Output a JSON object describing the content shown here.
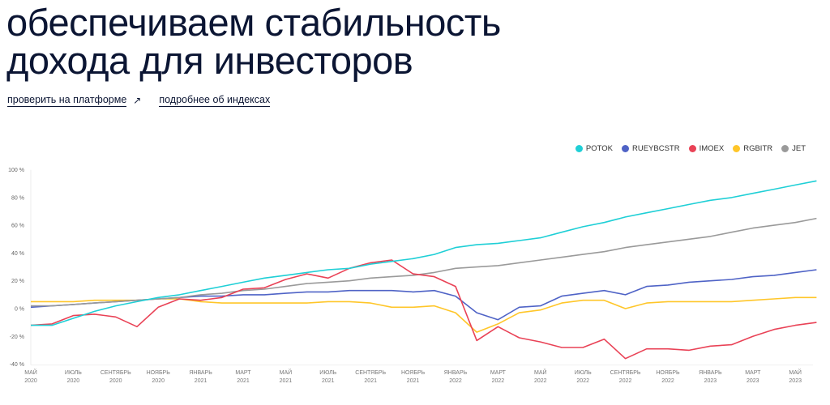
{
  "header": {
    "title_line1": "обеспечиваем стабильность",
    "title_line2": "дохода для инвесторов"
  },
  "links": {
    "platform_label": "проверить на платформе",
    "platform_icon": "arrow-up-right-icon",
    "platform_icon_glyph": "↗",
    "indexes_label": "подробнее об индексах"
  },
  "chart_data": {
    "type": "line",
    "title": "",
    "xlabel": "",
    "ylabel": "",
    "ylim": [
      -40,
      100
    ],
    "yticks": [
      "100 %",
      "80 %",
      "60 %",
      "40 %",
      "20 %",
      "0 %",
      "-20 %",
      "-40 %"
    ],
    "ytick_values": [
      100,
      80,
      60,
      40,
      20,
      0,
      -20,
      -40
    ],
    "grid": false,
    "legend_position": "top-right",
    "x": [
      "2020-05",
      "2020-06",
      "2020-07",
      "2020-08",
      "2020-09",
      "2020-10",
      "2020-11",
      "2020-12",
      "2021-01",
      "2021-02",
      "2021-03",
      "2021-04",
      "2021-05",
      "2021-06",
      "2021-07",
      "2021-08",
      "2021-09",
      "2021-10",
      "2021-11",
      "2021-12",
      "2022-01",
      "2022-02",
      "2022-03",
      "2022-04",
      "2022-05",
      "2022-06",
      "2022-07",
      "2022-08",
      "2022-09",
      "2022-10",
      "2022-11",
      "2022-12",
      "2023-01",
      "2023-02",
      "2023-03",
      "2023-04",
      "2023-05",
      "2023-06"
    ],
    "xtick_labels": [
      {
        "index": 0,
        "month": "МАЙ",
        "year": "2020"
      },
      {
        "index": 2,
        "month": "ИЮЛЬ",
        "year": "2020"
      },
      {
        "index": 4,
        "month": "СЕНТЯБРЬ",
        "year": "2020"
      },
      {
        "index": 6,
        "month": "НОЯБРЬ",
        "year": "2020"
      },
      {
        "index": 8,
        "month": "ЯНВАРЬ",
        "year": "2021"
      },
      {
        "index": 10,
        "month": "МАРТ",
        "year": "2021"
      },
      {
        "index": 12,
        "month": "МАЙ",
        "year": "2021"
      },
      {
        "index": 14,
        "month": "ИЮЛЬ",
        "year": "2021"
      },
      {
        "index": 16,
        "month": "СЕНТЯБРЬ",
        "year": "2021"
      },
      {
        "index": 18,
        "month": "НОЯБРЬ",
        "year": "2021"
      },
      {
        "index": 20,
        "month": "ЯНВАРЬ",
        "year": "2022"
      },
      {
        "index": 22,
        "month": "МАРТ",
        "year": "2022"
      },
      {
        "index": 24,
        "month": "МАЙ",
        "year": "2022"
      },
      {
        "index": 26,
        "month": "ИЮЛЬ",
        "year": "2022"
      },
      {
        "index": 28,
        "month": "СЕНТЯБРЬ",
        "year": "2022"
      },
      {
        "index": 30,
        "month": "НОЯБРЬ",
        "year": "2022"
      },
      {
        "index": 32,
        "month": "ЯНВАРЬ",
        "year": "2023"
      },
      {
        "index": 34,
        "month": "МАРТ",
        "year": "2023"
      },
      {
        "index": 36,
        "month": "МАЙ",
        "year": "2023"
      }
    ],
    "series": [
      {
        "name": "POTOK",
        "color": "#1fcfd6",
        "values": [
          -12,
          -12,
          -7,
          -2,
          2,
          5,
          8,
          10,
          13,
          16,
          19,
          22,
          24,
          26,
          28,
          29,
          32,
          34,
          36,
          39,
          44,
          46,
          47,
          49,
          51,
          55,
          59,
          62,
          66,
          69,
          72,
          75,
          78,
          80,
          83,
          86,
          89,
          92
        ]
      },
      {
        "name": "RUEYBCSTR",
        "color": "#4f63c6",
        "values": [
          1,
          2,
          3,
          4,
          5,
          6,
          7,
          8,
          9,
          9,
          10,
          10,
          11,
          12,
          12,
          13,
          13,
          13,
          12,
          13,
          9,
          -3,
          -8,
          1,
          2,
          9,
          11,
          13,
          10,
          16,
          17,
          19,
          20,
          21,
          23,
          24,
          26,
          28
        ]
      },
      {
        "name": "IMOEX",
        "color": "#e94256",
        "values": [
          -12,
          -11,
          -5,
          -4,
          -6,
          -13,
          1,
          7,
          6,
          8,
          14,
          15,
          21,
          25,
          22,
          29,
          33,
          35,
          25,
          23,
          16,
          -23,
          -13,
          -21,
          -24,
          -28,
          -28,
          -22,
          -36,
          -29,
          -29,
          -30,
          -27,
          -26,
          -20,
          -15,
          -12,
          -10
        ]
      },
      {
        "name": "RGBITR",
        "color": "#ffc629",
        "values": [
          5,
          5,
          5,
          6,
          6,
          6,
          7,
          7,
          5,
          4,
          4,
          4,
          4,
          4,
          5,
          5,
          4,
          1,
          1,
          2,
          -3,
          -17,
          -11,
          -3,
          -1,
          4,
          6,
          6,
          0,
          4,
          5,
          5,
          5,
          5,
          6,
          7,
          8,
          8
        ]
      },
      {
        "name": "JET",
        "color": "#9a9a9a",
        "values": [
          2,
          2,
          3,
          4,
          5,
          6,
          7,
          8,
          10,
          11,
          13,
          14,
          16,
          18,
          19,
          20,
          22,
          23,
          24,
          26,
          29,
          30,
          31,
          33,
          35,
          37,
          39,
          41,
          44,
          46,
          48,
          50,
          52,
          55,
          58,
          60,
          62,
          65
        ]
      }
    ]
  },
  "legend": {
    "items": [
      {
        "label": "POTOK",
        "color": "#1fcfd6"
      },
      {
        "label": "RUEYBCSTR",
        "color": "#4f63c6"
      },
      {
        "label": "IMOEX",
        "color": "#e94256"
      },
      {
        "label": "RGBITR",
        "color": "#ffc629"
      },
      {
        "label": "JET",
        "color": "#9a9a9a"
      }
    ]
  }
}
